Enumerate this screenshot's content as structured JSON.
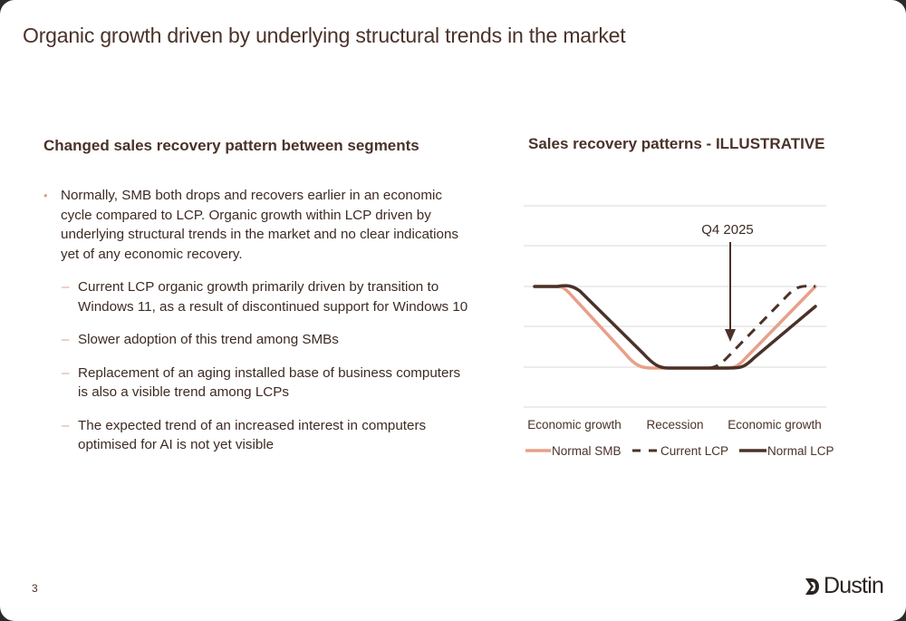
{
  "title": "Organic growth driven by underlying structural trends in the market",
  "left": {
    "heading": "Changed sales recovery pattern between segments",
    "bullet": "Normally, SMB both drops and recovers earlier in an economic cycle compared to LCP. Organic growth within LCP driven by underlying structural trends in the market and no clear indications yet of any economic recovery.",
    "subbullets": [
      "Current LCP organic growth primarily driven by transition to Windows 11, as a result of discontinued support for Windows 10",
      "Slower adoption of this trend among SMBs",
      "Replacement of an aging installed base of business computers is also a visible trend among LCPs",
      "The expected trend of an increased interest in computers optimised for AI is not yet visible"
    ]
  },
  "chart_data": {
    "type": "line",
    "title": "Sales recovery patterns - ILLUSTRATIVE",
    "categories": [
      "Economic growth",
      "Recession",
      "Economic growth"
    ],
    "annotation": "Q4 2025",
    "grid": true,
    "legend_position": "bottom",
    "series": [
      {
        "name": "Normal SMB",
        "color": "#e8a088",
        "style": "solid"
      },
      {
        "name": "Current LCP",
        "color": "#4a3229",
        "style": "dashed"
      },
      {
        "name": "Normal LCP",
        "color": "#4a3229",
        "style": "solid"
      }
    ]
  },
  "footer": {
    "page_number": "3",
    "logo_text": "Dustin"
  }
}
